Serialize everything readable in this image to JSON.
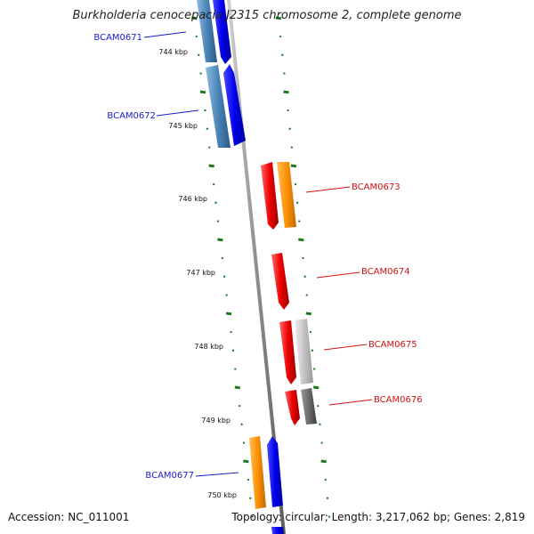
{
  "title": "Burkholderia cenocepacia J2315 chromosome 2, complete genome",
  "footer": {
    "accession": "Accession: NC_011001",
    "topology": "Topology: circular; Length: 3,217,062 bp; Genes: 2,819"
  },
  "colors": {
    "backbone": "#8e8e8e",
    "tick": "#1a7a1a",
    "label_blue": "#1a1acc",
    "label_red": "#d01010",
    "gene_blue": "#0000ee",
    "gene_steel": "#4a84b8",
    "gene_red": "#ee0000",
    "gene_orange": "#ff9000",
    "gene_lightgray": "#c4c4c4",
    "gene_darkgray": "#6a6a6a"
  },
  "scale_labels": [
    "744 kbp",
    "745 kbp",
    "746 kbp",
    "747 kbp",
    "748 kbp",
    "749 kbp",
    "750 kbp"
  ],
  "gene_labels": [
    {
      "name": "BCAM0671",
      "color": "blue"
    },
    {
      "name": "BCAM0672",
      "color": "blue"
    },
    {
      "name": "BCAM0673",
      "color": "red"
    },
    {
      "name": "BCAM0674",
      "color": "red"
    },
    {
      "name": "BCAM0675",
      "color": "red"
    },
    {
      "name": "BCAM0676",
      "color": "red"
    },
    {
      "name": "BCAM0677",
      "color": "blue"
    }
  ]
}
